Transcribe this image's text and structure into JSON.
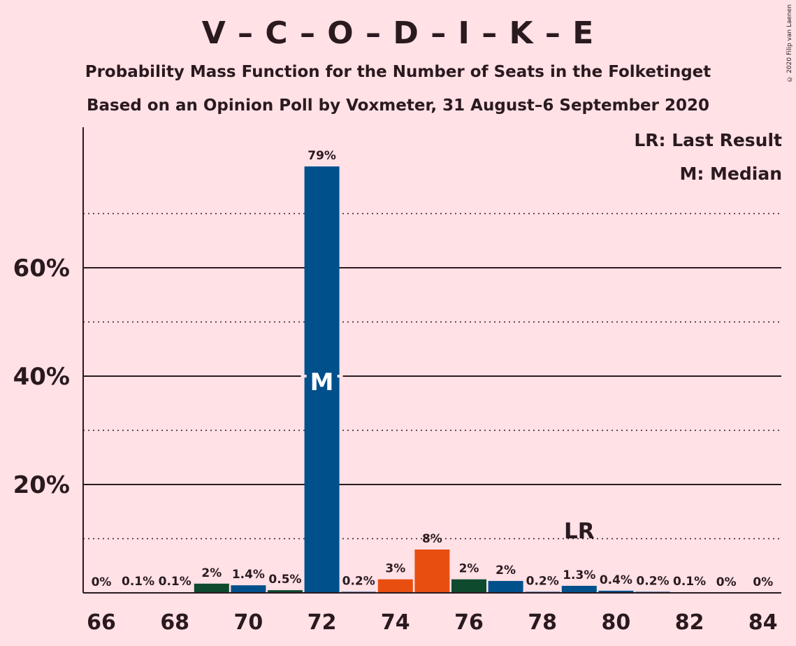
{
  "header": {
    "title": "V – C – O – D – I – K – E",
    "subtitle": "Probability Mass Function for the Number of Seats in the Folketinget",
    "subtitle2": "Based on an Opinion Poll by Voxmeter, 31 August–6 September 2020",
    "copyright": "© 2020 Filip van Laenen"
  },
  "legend": {
    "last_result": "LR: Last Result",
    "median": "M: Median"
  },
  "chart_data": {
    "type": "bar",
    "title": "V – C – O – D – I – K – E",
    "xlabel": "",
    "ylabel": "",
    "ylim": [
      0,
      85
    ],
    "yticks": [
      "20%",
      "40%",
      "60%"
    ],
    "xticks": [
      "66",
      "68",
      "70",
      "72",
      "74",
      "76",
      "78",
      "80",
      "82",
      "84"
    ],
    "categories": [
      66,
      67,
      68,
      69,
      70,
      71,
      72,
      73,
      74,
      75,
      76,
      77,
      78,
      79,
      80,
      81,
      82,
      83,
      84
    ],
    "values": [
      0,
      0.1,
      0.1,
      2,
      1.4,
      0.5,
      79,
      0.2,
      3,
      8,
      2,
      2,
      0.2,
      1.3,
      0.4,
      0.2,
      0.1,
      0,
      0
    ],
    "plot_values": [
      0,
      0.1,
      0.1,
      1.7,
      1.4,
      0.5,
      78.7,
      0.2,
      2.5,
      8.0,
      2.5,
      2.2,
      0.2,
      1.3,
      0.4,
      0.2,
      0.1,
      0,
      0
    ],
    "labels": [
      "0%",
      "0.1%",
      "0.1%",
      "2%",
      "1.4%",
      "0.5%",
      "79%",
      "0.2%",
      "3%",
      "8%",
      "2%",
      "2%",
      "0.2%",
      "1.3%",
      "0.4%",
      "0.2%",
      "0.1%",
      "0%",
      "0%"
    ],
    "colors": [
      "#00508C",
      "#00508C",
      "#00508C",
      "#0E4A2E",
      "#00508C",
      "#0E4A2E",
      "#00508C",
      "#00508C",
      "#E84E10",
      "#E84E10",
      "#0E4A2E",
      "#00508C",
      "#00508C",
      "#00508C",
      "#00508C",
      "#00508C",
      "#00508C",
      "#00508C",
      "#00508C"
    ],
    "median_seat": 72,
    "median_label": "M",
    "last_result_seat": 79,
    "last_result_label": "LR",
    "grid": {
      "solid": [
        20,
        40,
        60
      ],
      "dotted": [
        10,
        30,
        50,
        70
      ]
    }
  }
}
